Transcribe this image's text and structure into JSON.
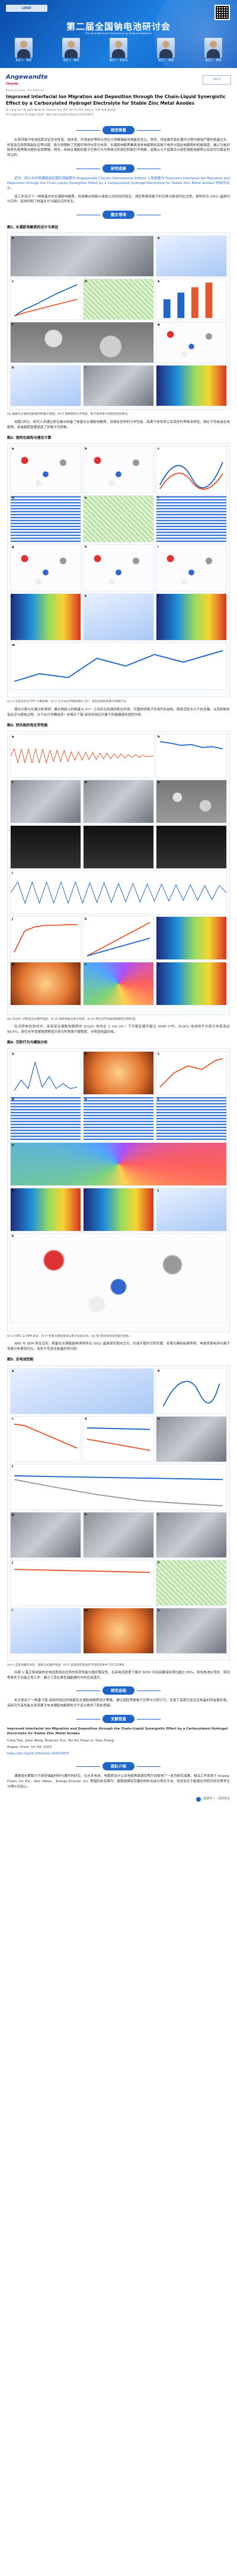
{
  "banner": {
    "title": "第二届全国钠电池研讨会",
    "subtitle": "The 2nd National Conference on Sodium Batteries",
    "speakers": [
      "报告人 · 教授",
      "报告人 · 教授",
      "报告人 · 研究员",
      "报告人 · 教授",
      "报告人 · 教授"
    ]
  },
  "journal": {
    "name": "Angewandte",
    "sub": "Chemie",
    "partner": "GDCh"
  },
  "article": {
    "meta": "Research Article · Zinc Batteries",
    "title": "Improved Interfacial Ion Migration and Deposition through the Chain-Liquid Synergistic Effect by a Carboxylated Hydrogel Electrolyte for Stable Zinc Metal Anodes",
    "authors": "Dr. Cong Tian, Dr. Jiahe Wang, Dr. Ruoxuan Sun, Prof. Yan Ali, Prof. Haoyi Li, Prof. Yujie Zhang",
    "first_published": "First published: 24 August 2023 · https://doi.org/10.1002/anie.202310970"
  },
  "sections": {
    "background": "研究背景",
    "results": "研究成果",
    "content": "图文导读",
    "conclusion": "研究总结",
    "reference": "文献信息",
    "authors": "团队介绍"
  },
  "paragraphs": {
    "background": "水系锌离子电池因其本征安全性高、成本低、环境友好等特点而在大规模储能领域备受关注。然而，锌金属负极在循环过程中面临严重的枝晶生长、析氢反应和表面副反应等问题，极大地限制了其循环寿命与库仑效率。水凝胶电解质兼具液体电解质的高离子电导与固态电解质的机械强度，被认为是抑制锌负极界面问题的有效策略。然而，传统水凝胶的离子迁移行为与界面沉积调控机制仍不明确，亟需从分子层面设计新型凝胶电解质以实现均匀稳定的锌沉积。",
    "results_1": "近日，四川大学某课题组在国际顶级期刊 Angewandte Chemie International Edition 上发表题为“Improved Interfacial Ion Migration and Deposition through the Chain-Liquid Synergistic Effect by a Carboxylated Hydrogel Electrolyte for Stable Zinc Metal Anodes”的研究论文。",
    "results_2": "该工作设计了一种羧基化的水凝胶电解质，利用聚合物链与液相之间的协同效应，调控界面锌离子的迁移与脱溶剂化过程，诱导锌沿 (002) 晶面均匀沉积，有效抑制了枝晶生长与副反应的发生。",
    "content_1": "如图1所示，研究人员通过原位聚合制备了羧基化水凝胶电解质，其具有优异的力学性能、高离子电导率以及良好的界面亲和性。相比于传统液态电解质，该电解质显著提高了锌离子迁移数。",
    "content_2": "理论计算与光谱分析表明，聚合物链上的羧基与 Zn²⁺ 之间存在较强的配位作用，可重构锌离子的溶剂化结构，降低活性水分子的含量，从而抑制析氢反应与腐蚀过程。分子动力学模拟进一步揭示了链-液协同效应对离子传输通道的调控作用。",
    "content_3": "在对称电池测试中，采用该水凝胶电解质的 Zn||Zn 电池在 1 mA cm⁻² 下可稳定循环超过 3000 小时，Zn||Cu 电池的平均库仑效率高达 99.6%。原位光学显微镜观察显示锌沉积表面平整致密，无明显枝晶形成。",
    "content_4": "XRD 与 SEM 表征证实，羧基化水凝胶能够诱导锌沿 (002) 晶面择优取向生长，形成平整的沉积形貌。有限元模拟结果表明，电极表面电场与离子浓度分布更加均匀，有利于实现无枝晶的锌沉积。",
    "content_5": "匹配 V 基正极组装的全电池表现出优异的倍率性能与循环稳定性，在高电流密度下循环 5000 次后容量保持率仍超过 85%。软包电池在弯折、剪切等条件下仍能正常工作，展示了其在柔性储能器件中的应用潜力。",
    "conclusion": "本文提出了一种基于链-液协同效应的羧基化水凝胶电解质设计策略，通过调控界面离子迁移与沉积行为，实现了高度可逆且无枝晶的锌金属负极。该研究为高性能水系锌离子电池凝胶电解质的分子设计提供了新的思路。",
    "team": "课题组长期致力于新型储能材料与器件的研究，在水系电池、电解质设计以及电极界面调控等方向取得了一系列研究成果，相关工作发表于 Angew. Chem. Int. Ed.、Adv. Mater.、Energy Environ. Sci. 等国际知名期刊。课题组拥有完善的材料合成与表征平台，欢迎有志于能源化学研究的优秀学生与博士后加入。"
  },
  "figures": [
    {
      "label": "图1. 水凝胶电解质的设计与表征",
      "caption": "(a) 羧基化水凝胶电解质的制备示意图；(b–f) 电解质的力学性能、离子电导率与界面润湿性表征。"
    },
    {
      "label": "图2. 溶剂化结构与理论计算",
      "caption": "(a–c) 光谱分析与 DFT 计算结果；(d–i) 分子动力学模拟揭示 Zn²⁺ 溶剂化结构及离子传输行为。"
    },
    {
      "label": "图3. 锌负极的电化学性能",
      "caption": "(a) Zn||Zn 对称电池长循环性能；(b–d) 倍率性能与库仑效率；(e–h) 原位光学显微镜观察锌沉积形貌。"
    },
    {
      "label": "图4. 沉积行为与模拟分析",
      "caption": "(a–c) XRD 与 SEM 表征；(d–f) 有限元模拟电场与离子浓度分布；(g) 链-液协同效应机理示意图。"
    },
    {
      "label": "图5. 全电池性能",
      "caption": "(a–c) 全电池循环伏安、倍率与长循环性能；(d–f) 柔性软包电池在不同形变条件下的工作演示。"
    }
  ],
  "reference": {
    "title": "Improved Interfacial Ion Migration and Deposition through the Chain-Liquid Synergistic Effect by a Carboxylated Hydrogel Electrolyte for Stable Zinc Metal Anodes",
    "authors": "Cong Tian, Jiahe Wang, Ruoxuan Sun, Yan Ali, Haoyi Li, Yujie Zhang",
    "journal": "Angew. Chem. Int. Ed. 2023",
    "doi": "https://doi.org/10.1002/anie.202310970"
  },
  "footer": {
    "brand": "能源学人 · 科研前沿"
  }
}
